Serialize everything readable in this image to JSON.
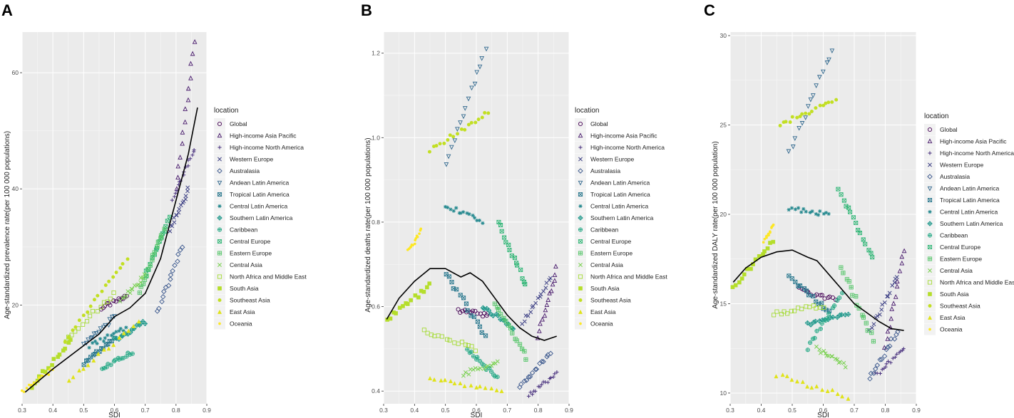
{
  "figure": {
    "legend_title": "location",
    "x_label": "SDI",
    "locations": [
      {
        "name": "Global",
        "color": "#440154",
        "marker": "circle"
      },
      {
        "name": "High-income Asia Pacific",
        "color": "#481a6c",
        "marker": "triangle-up"
      },
      {
        "name": "High-income North America",
        "color": "#472f7d",
        "marker": "plus"
      },
      {
        "name": "Western Europe",
        "color": "#414487",
        "marker": "cross"
      },
      {
        "name": "Australasia",
        "color": "#39568c",
        "marker": "diamond"
      },
      {
        "name": "Andean Latin America",
        "color": "#31688e",
        "marker": "triangle-down"
      },
      {
        "name": "Tropical Latin America",
        "color": "#2a788e",
        "marker": "square-cross"
      },
      {
        "name": "Central Latin America",
        "color": "#23888e",
        "marker": "asterisk"
      },
      {
        "name": "Southern Latin America",
        "color": "#1f988b",
        "marker": "diamond-plus"
      },
      {
        "name": "Caribbean",
        "color": "#22a884",
        "marker": "circle-plus"
      },
      {
        "name": "Central Europe",
        "color": "#35b779",
        "marker": "square-x"
      },
      {
        "name": "Eastern Europe",
        "color": "#54c568",
        "marker": "square-plus"
      },
      {
        "name": "Central Asia",
        "color": "#7ad151",
        "marker": "x"
      },
      {
        "name": "North Africa and Middle East",
        "color": "#a5db36",
        "marker": "square-open"
      },
      {
        "name": "South Asia",
        "color": "#b5de2b",
        "marker": "square"
      },
      {
        "name": "Southeast Asia",
        "color": "#c2df23",
        "marker": "dot"
      },
      {
        "name": "East Asia",
        "color": "#e0e319",
        "marker": "triangle-filled"
      },
      {
        "name": "Oceania",
        "color": "#fde725",
        "marker": "dot-small"
      }
    ]
  },
  "chart_data": [
    {
      "panel_label": "A",
      "type": "scatter",
      "xlabel": "SDI",
      "ylabel": "Age-standardized prevalence rate(per 100 000 populations)",
      "xlim": [
        0.3,
        0.9
      ],
      "ylim": [
        3,
        67
      ],
      "x_ticks": [
        0.3,
        0.4,
        0.5,
        0.6,
        0.7,
        0.8,
        0.9
      ],
      "x_tick_labels": [
        "0.3",
        "0.4",
        "0.5",
        "0.6",
        "0.7",
        "0.8",
        "0.9"
      ],
      "y_ticks": [
        20,
        40,
        60
      ],
      "y_tick_labels": [
        "20",
        "40",
        "60"
      ],
      "trend": {
        "x": [
          0.31,
          0.4,
          0.5,
          0.55,
          0.6,
          0.65,
          0.7,
          0.75,
          0.8,
          0.84,
          0.87
        ],
        "y": [
          5,
          9,
          13,
          15,
          18,
          19.5,
          22,
          28,
          38,
          46,
          54
        ]
      },
      "series": [
        {
          "name": "Global",
          "x_start": 0.56,
          "x_end": 0.64,
          "y_start": 19.5,
          "y_end": 21.5,
          "n": 15
        },
        {
          "name": "High-income Asia Pacific",
          "x_start": 0.8,
          "x_end": 0.86,
          "y_start": 40,
          "y_end": 65,
          "n": 14
        },
        {
          "name": "High-income North America",
          "x_start": 0.79,
          "x_end": 0.86,
          "y_start": 38,
          "y_end": 47,
          "n": 16
        },
        {
          "name": "Western Europe",
          "x_start": 0.78,
          "x_end": 0.84,
          "y_start": 33,
          "y_end": 40,
          "n": 16
        },
        {
          "name": "Australasia",
          "x_start": 0.74,
          "x_end": 0.82,
          "y_start": 19,
          "y_end": 30,
          "n": 15
        },
        {
          "name": "Andean Latin America",
          "x_start": 0.5,
          "x_end": 0.6,
          "y_start": 13,
          "y_end": 18,
          "n": 15
        },
        {
          "name": "Tropical Latin America",
          "x_start": 0.5,
          "x_end": 0.6,
          "y_start": 10,
          "y_end": 14,
          "n": 15
        },
        {
          "name": "Central Latin America",
          "x_start": 0.52,
          "x_end": 0.64,
          "y_start": 13,
          "y_end": 16,
          "n": 15
        },
        {
          "name": "Southern Latin America",
          "x_start": 0.6,
          "x_end": 0.7,
          "y_start": 14,
          "y_end": 17,
          "n": 15
        },
        {
          "name": "Caribbean",
          "x_start": 0.56,
          "x_end": 0.66,
          "y_start": 9,
          "y_end": 12,
          "n": 15
        },
        {
          "name": "Central Europe",
          "x_start": 0.7,
          "x_end": 0.78,
          "y_start": 25,
          "y_end": 35,
          "n": 15
        },
        {
          "name": "Eastern Europe",
          "x_start": 0.68,
          "x_end": 0.76,
          "y_start": 22,
          "y_end": 33,
          "n": 15
        },
        {
          "name": "Central Asia",
          "x_start": 0.62,
          "x_end": 0.7,
          "y_start": 21,
          "y_end": 25,
          "n": 15
        },
        {
          "name": "North Africa and Middle East",
          "x_start": 0.44,
          "x_end": 0.6,
          "y_start": 14,
          "y_end": 22,
          "n": 15
        },
        {
          "name": "South Asia",
          "x_start": 0.33,
          "x_end": 0.46,
          "y_start": 6,
          "y_end": 14,
          "n": 15
        },
        {
          "name": "Southeast Asia",
          "x_start": 0.44,
          "x_end": 0.64,
          "y_start": 14,
          "y_end": 28,
          "n": 18
        },
        {
          "name": "East Asia",
          "x_start": 0.45,
          "x_end": 0.68,
          "y_start": 7,
          "y_end": 17,
          "n": 15
        },
        {
          "name": "Oceania",
          "x_start": 0.3,
          "x_end": 0.4,
          "y_start": 5,
          "y_end": 9,
          "n": 14
        }
      ]
    },
    {
      "panel_label": "B",
      "type": "scatter",
      "xlabel": "SDI",
      "ylabel": "Age-standardized deaths rate(per 100 000 populations)",
      "xlim": [
        0.3,
        0.9
      ],
      "ylim": [
        0.37,
        1.25
      ],
      "x_ticks": [
        0.3,
        0.4,
        0.5,
        0.6,
        0.7,
        0.8,
        0.9
      ],
      "x_tick_labels": [
        "0.3",
        "0.4",
        "0.5",
        "0.6",
        "0.7",
        "0.8",
        "0.9"
      ],
      "y_ticks": [
        0.4,
        0.6,
        0.8,
        1.0,
        1.2
      ],
      "y_tick_labels": [
        "0.4",
        "0.6",
        "0.8",
        "1.0",
        "1.2"
      ],
      "trend": {
        "x": [
          0.31,
          0.35,
          0.4,
          0.45,
          0.5,
          0.55,
          0.58,
          0.62,
          0.66,
          0.7,
          0.74,
          0.78,
          0.82,
          0.86
        ],
        "y": [
          0.57,
          0.62,
          0.66,
          0.69,
          0.69,
          0.67,
          0.68,
          0.66,
          0.62,
          0.58,
          0.55,
          0.53,
          0.52,
          0.53
        ]
      },
      "series": [
        {
          "name": "Global",
          "x_start": 0.54,
          "x_end": 0.64,
          "y_start": 0.59,
          "y_end": 0.58,
          "n": 15
        },
        {
          "name": "High-income Asia Pacific",
          "x_start": 0.8,
          "x_end": 0.86,
          "y_start": 0.53,
          "y_end": 0.69,
          "n": 14
        },
        {
          "name": "High-income North America",
          "x_start": 0.77,
          "x_end": 0.86,
          "y_start": 0.39,
          "y_end": 0.44,
          "n": 16
        },
        {
          "name": "Western Europe",
          "x_start": 0.75,
          "x_end": 0.84,
          "y_start": 0.56,
          "y_end": 0.67,
          "n": 16
        },
        {
          "name": "Australasia",
          "x_start": 0.74,
          "x_end": 0.84,
          "y_start": 0.41,
          "y_end": 0.49,
          "n": 15
        },
        {
          "name": "Andean Latin America",
          "x_start": 0.5,
          "x_end": 0.63,
          "y_start": 0.94,
          "y_end": 1.21,
          "n": 15
        },
        {
          "name": "Tropical Latin America",
          "x_start": 0.5,
          "x_end": 0.63,
          "y_start": 0.68,
          "y_end": 0.53,
          "n": 15
        },
        {
          "name": "Central Latin America",
          "x_start": 0.5,
          "x_end": 0.62,
          "y_start": 0.84,
          "y_end": 0.8,
          "n": 15
        },
        {
          "name": "Southern Latin America",
          "x_start": 0.62,
          "x_end": 0.72,
          "y_start": 0.6,
          "y_end": 0.55,
          "n": 15
        },
        {
          "name": "Caribbean",
          "x_start": 0.57,
          "x_end": 0.67,
          "y_start": 0.5,
          "y_end": 0.43,
          "n": 15
        },
        {
          "name": "Central Europe",
          "x_start": 0.67,
          "x_end": 0.76,
          "y_start": 0.8,
          "y_end": 0.65,
          "n": 15
        },
        {
          "name": "Eastern Europe",
          "x_start": 0.66,
          "x_end": 0.76,
          "y_start": 0.61,
          "y_end": 0.48,
          "n": 15
        },
        {
          "name": "Central Asia",
          "x_start": 0.56,
          "x_end": 0.67,
          "y_start": 0.44,
          "y_end": 0.47,
          "n": 15
        },
        {
          "name": "North Africa and Middle East",
          "x_start": 0.43,
          "x_end": 0.6,
          "y_start": 0.54,
          "y_end": 0.5,
          "n": 15
        },
        {
          "name": "South Asia",
          "x_start": 0.31,
          "x_end": 0.45,
          "y_start": 0.57,
          "y_end": 0.65,
          "n": 15
        },
        {
          "name": "Southeast Asia",
          "x_start": 0.45,
          "x_end": 0.64,
          "y_start": 0.97,
          "y_end": 1.06,
          "n": 18
        },
        {
          "name": "East Asia",
          "x_start": 0.45,
          "x_end": 0.68,
          "y_start": 0.43,
          "y_end": 0.4,
          "n": 15
        },
        {
          "name": "Oceania",
          "x_start": 0.38,
          "x_end": 0.42,
          "y_start": 0.73,
          "y_end": 0.78,
          "n": 14
        }
      ]
    },
    {
      "panel_label": "C",
      "type": "scatter",
      "xlabel": "SDI",
      "ylabel": "Age-standardized DALY rate(per 100 000 population)",
      "xlim": [
        0.3,
        0.9
      ],
      "ylim": [
        9.4,
        30.2
      ],
      "x_ticks": [
        0.3,
        0.4,
        0.5,
        0.6,
        0.7,
        0.8,
        0.9
      ],
      "x_tick_labels": [
        "0.3",
        "0.4",
        "0.5",
        "0.6",
        "0.7",
        "0.8",
        "0.9"
      ],
      "y_ticks": [
        10,
        15,
        20,
        25,
        30
      ],
      "y_tick_labels": [
        "10",
        "15",
        "20",
        "25",
        "30"
      ],
      "trend": {
        "x": [
          0.31,
          0.35,
          0.4,
          0.45,
          0.5,
          0.55,
          0.58,
          0.62,
          0.66,
          0.7,
          0.74,
          0.78,
          0.82,
          0.86
        ],
        "y": [
          16.2,
          17,
          17.6,
          17.9,
          18,
          17.6,
          17.4,
          16.6,
          15.8,
          15,
          14.5,
          14,
          13.6,
          13.5
        ]
      },
      "series": [
        {
          "name": "Global",
          "x_start": 0.52,
          "x_end": 0.64,
          "y_start": 15.8,
          "y_end": 15.2,
          "n": 15
        },
        {
          "name": "High-income Asia Pacific",
          "x_start": 0.8,
          "x_end": 0.86,
          "y_start": 12.5,
          "y_end": 18,
          "n": 14
        },
        {
          "name": "High-income North America",
          "x_start": 0.77,
          "x_end": 0.86,
          "y_start": 11,
          "y_end": 12.5,
          "n": 16
        },
        {
          "name": "Western Europe",
          "x_start": 0.75,
          "x_end": 0.84,
          "y_start": 13.5,
          "y_end": 16.5,
          "n": 16
        },
        {
          "name": "Australasia",
          "x_start": 0.75,
          "x_end": 0.84,
          "y_start": 10.8,
          "y_end": 13.5,
          "n": 15
        },
        {
          "name": "Andean Latin America",
          "x_start": 0.49,
          "x_end": 0.63,
          "y_start": 23.5,
          "y_end": 29.2,
          "n": 15
        },
        {
          "name": "Tropical Latin America",
          "x_start": 0.49,
          "x_end": 0.62,
          "y_start": 16.5,
          "y_end": 14.5,
          "n": 15
        },
        {
          "name": "Central Latin America",
          "x_start": 0.49,
          "x_end": 0.62,
          "y_start": 20.3,
          "y_end": 20,
          "n": 15
        },
        {
          "name": "Southern Latin America",
          "x_start": 0.55,
          "x_end": 0.68,
          "y_start": 13.8,
          "y_end": 14.5,
          "n": 15
        },
        {
          "name": "Caribbean",
          "x_start": 0.55,
          "x_end": 0.66,
          "y_start": 12.5,
          "y_end": 15.5,
          "n": 15
        },
        {
          "name": "Central Europe",
          "x_start": 0.65,
          "x_end": 0.76,
          "y_start": 21.4,
          "y_end": 17.5,
          "n": 15
        },
        {
          "name": "Eastern Europe",
          "x_start": 0.66,
          "x_end": 0.76,
          "y_start": 17,
          "y_end": 13,
          "n": 15
        },
        {
          "name": "Central Asia",
          "x_start": 0.58,
          "x_end": 0.67,
          "y_start": 12.5,
          "y_end": 11.5,
          "n": 15
        },
        {
          "name": "North Africa and Middle East",
          "x_start": 0.44,
          "x_end": 0.6,
          "y_start": 14.4,
          "y_end": 14.9,
          "n": 15
        },
        {
          "name": "South Asia",
          "x_start": 0.31,
          "x_end": 0.44,
          "y_start": 15.9,
          "y_end": 18.5,
          "n": 15
        },
        {
          "name": "Southeast Asia",
          "x_start": 0.46,
          "x_end": 0.64,
          "y_start": 25,
          "y_end": 26.4,
          "n": 18
        },
        {
          "name": "East Asia",
          "x_start": 0.45,
          "x_end": 0.68,
          "y_start": 11,
          "y_end": 9.8,
          "n": 15
        },
        {
          "name": "Oceania",
          "x_start": 0.41,
          "x_end": 0.44,
          "y_start": 18.5,
          "y_end": 19.4,
          "n": 14
        }
      ]
    }
  ]
}
